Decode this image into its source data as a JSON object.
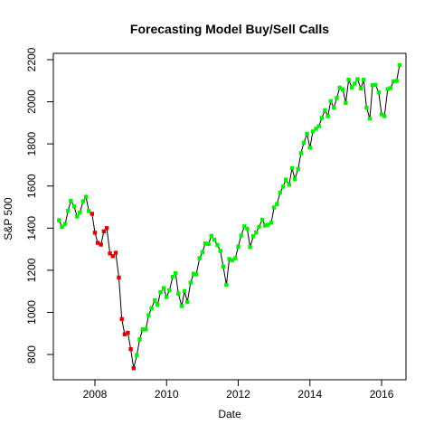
{
  "chart_data": {
    "type": "line",
    "title": "Forecasting Model Buy/Sell Calls",
    "xlabel": "Date",
    "ylabel": "S&P 500",
    "xlim": [
      2006.84,
      2016.68
    ],
    "ylim": [
      680,
      2230
    ],
    "x_ticks": [
      2008,
      2010,
      2012,
      2014,
      2016
    ],
    "y_ticks": [
      800,
      1000,
      1200,
      1400,
      1600,
      1800,
      2000,
      2200
    ],
    "grid": false,
    "legend": "none",
    "colors": {
      "buy": "#00ee00",
      "sell": "#dd0000",
      "line": "#000000"
    },
    "series": [
      {
        "signal": "buy",
        "x": [
          2007.0,
          2007.08,
          2007.17,
          2007.25,
          2007.33,
          2007.42,
          2007.5,
          2007.58,
          2007.67,
          2007.75,
          2007.83
        ],
        "y": [
          1438,
          1406,
          1420,
          1482,
          1530,
          1503,
          1455,
          1474,
          1527,
          1549,
          1481
        ]
      },
      {
        "signal": "sell",
        "x": [
          2007.92,
          2008.0,
          2008.08,
          2008.17,
          2008.25,
          2008.33,
          2008.42,
          2008.5,
          2008.58,
          2008.67,
          2008.75,
          2008.83,
          2008.92,
          2009.0,
          2009.08
        ],
        "y": [
          1468,
          1378,
          1330,
          1322,
          1385,
          1400,
          1280,
          1267,
          1283,
          1165,
          968,
          896,
          903,
          825,
          735
        ]
      },
      {
        "signal": "buy",
        "x": [
          2009.17,
          2009.25,
          2009.33,
          2009.42,
          2009.5,
          2009.58,
          2009.67,
          2009.75,
          2009.83,
          2009.92,
          2010.0,
          2010.08,
          2010.17,
          2010.25,
          2010.33,
          2010.42,
          2010.5,
          2010.58,
          2010.67,
          2010.75,
          2010.83,
          2010.92,
          2011.0,
          2011.08,
          2011.17,
          2011.25,
          2011.33,
          2011.42,
          2011.5,
          2011.58,
          2011.67,
          2011.75,
          2011.83,
          2011.92,
          2012.0,
          2012.08,
          2012.17,
          2012.25,
          2012.33,
          2012.42,
          2012.5,
          2012.58,
          2012.67,
          2012.75,
          2012.83,
          2012.92,
          2013.0,
          2013.08,
          2013.17,
          2013.25,
          2013.33,
          2013.42,
          2013.5,
          2013.58,
          2013.67,
          2013.75,
          2013.83,
          2013.92,
          2014.0,
          2014.08,
          2014.17,
          2014.25,
          2014.33,
          2014.42,
          2014.5,
          2014.58,
          2014.67,
          2014.75,
          2014.83,
          2014.92,
          2015.0,
          2015.08,
          2015.17,
          2015.25,
          2015.33,
          2015.42,
          2015.5,
          2015.58,
          2015.67,
          2015.75,
          2015.83,
          2015.92,
          2016.0,
          2016.08,
          2016.17,
          2016.25,
          2016.33,
          2016.42,
          2016.5
        ],
        "y": [
          797,
          872,
          919,
          919,
          987,
          1020,
          1057,
          1036,
          1096,
          1115,
          1073,
          1104,
          1169,
          1186,
          1089,
          1030,
          1101,
          1049,
          1141,
          1183,
          1180,
          1257,
          1286,
          1327,
          1325,
          1363,
          1345,
          1320,
          1292,
          1218,
          1131,
          1253,
          1247,
          1257,
          1312,
          1365,
          1408,
          1397,
          1310,
          1362,
          1379,
          1406,
          1440,
          1412,
          1416,
          1426,
          1498,
          1514,
          1569,
          1597,
          1630,
          1606,
          1685,
          1632,
          1681,
          1756,
          1805,
          1848,
          1782,
          1859,
          1872,
          1884,
          1923,
          1960,
          1931,
          2003,
          1972,
          2018,
          2067,
          2059,
          1995,
          2104,
          2068,
          2086,
          2107,
          2063,
          2104,
          1972,
          1920,
          2079,
          2080,
          2044,
          1940,
          1932,
          2060,
          2065,
          2097,
          2099,
          2174
        ]
      }
    ]
  }
}
